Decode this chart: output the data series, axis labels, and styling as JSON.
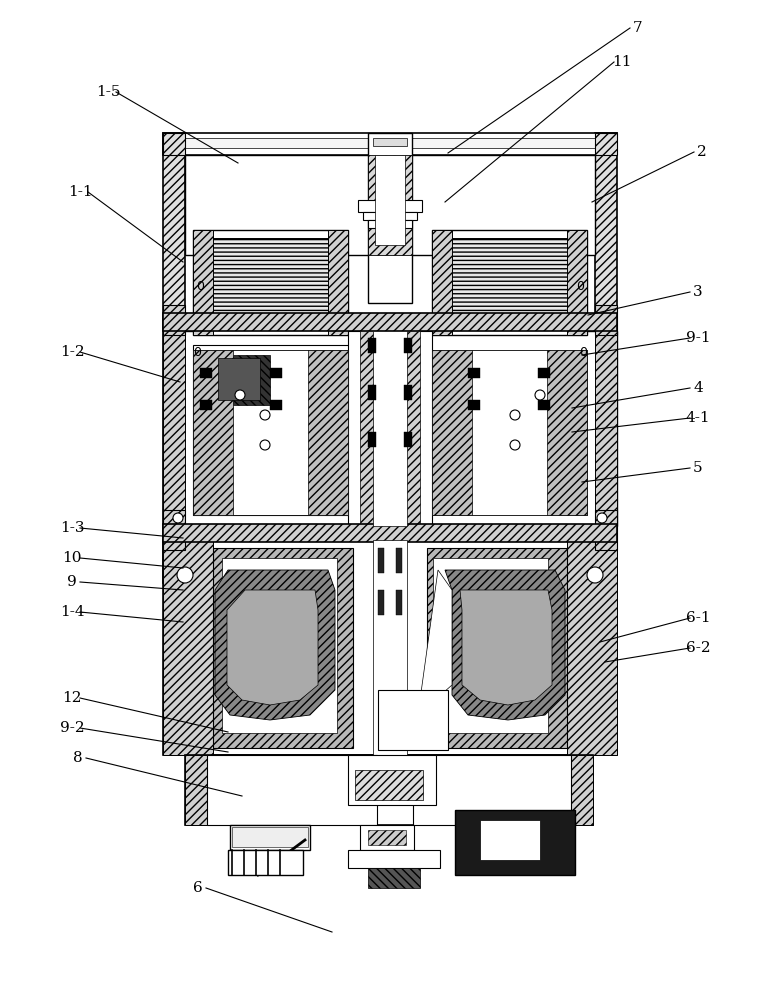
{
  "bg_color": "#ffffff",
  "line_color": "#000000",
  "annotations": [
    [
      "1-5",
      108,
      92,
      238,
      163,
      "right"
    ],
    [
      "1-1",
      80,
      192,
      183,
      262,
      "right"
    ],
    [
      "1-2",
      72,
      352,
      180,
      382,
      "right"
    ],
    [
      "1-3",
      72,
      528,
      183,
      538,
      "right"
    ],
    [
      "10",
      72,
      558,
      183,
      568,
      "right"
    ],
    [
      "9",
      72,
      582,
      183,
      590,
      "right"
    ],
    [
      "1-4",
      72,
      612,
      183,
      622,
      "right"
    ],
    [
      "12",
      72,
      698,
      228,
      732,
      "right"
    ],
    [
      "9-2",
      72,
      728,
      228,
      752,
      "right"
    ],
    [
      "8",
      78,
      758,
      242,
      796,
      "right"
    ],
    [
      "6",
      198,
      888,
      332,
      932,
      "right"
    ],
    [
      "7",
      638,
      28,
      448,
      153,
      "left"
    ],
    [
      "11",
      622,
      62,
      445,
      202,
      "left"
    ],
    [
      "2",
      702,
      152,
      592,
      202,
      "left"
    ],
    [
      "3",
      698,
      292,
      588,
      315,
      "left"
    ],
    [
      "9-1",
      698,
      338,
      582,
      355,
      "left"
    ],
    [
      "4",
      698,
      388,
      572,
      408,
      "left"
    ],
    [
      "4-1",
      698,
      418,
      572,
      432,
      "left"
    ],
    [
      "5",
      698,
      468,
      582,
      482,
      "left"
    ],
    [
      "6-1",
      698,
      618,
      600,
      642,
      "left"
    ],
    [
      "6-2",
      698,
      648,
      605,
      662,
      "left"
    ]
  ]
}
